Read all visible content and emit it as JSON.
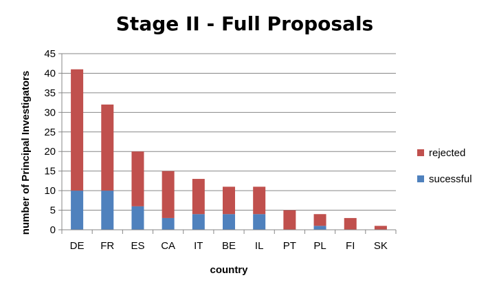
{
  "chart_data": {
    "type": "bar",
    "stacked": true,
    "title": "Stage II - Full Proposals",
    "xlabel": "country",
    "ylabel": "number of Principal Investigators",
    "categories": [
      "DE",
      "FR",
      "ES",
      "CA",
      "IT",
      "BE",
      "IL",
      "PT",
      "PL",
      "FI",
      "SK"
    ],
    "series": [
      {
        "name": "sucessful",
        "color": "#4f81bd",
        "values": [
          10,
          10,
          6,
          3,
          4,
          4,
          4,
          0,
          1,
          0,
          0
        ]
      },
      {
        "name": "rejected",
        "color": "#c0504d",
        "values": [
          31,
          22,
          14,
          12,
          9,
          7,
          7,
          5,
          3,
          3,
          1
        ]
      }
    ],
    "ylim": [
      0,
      45
    ],
    "yticks": [
      0,
      5,
      10,
      15,
      20,
      25,
      30,
      35,
      40,
      45
    ],
    "grid": true,
    "legend": {
      "position": "right",
      "order": [
        "rejected",
        "sucessful"
      ]
    }
  }
}
